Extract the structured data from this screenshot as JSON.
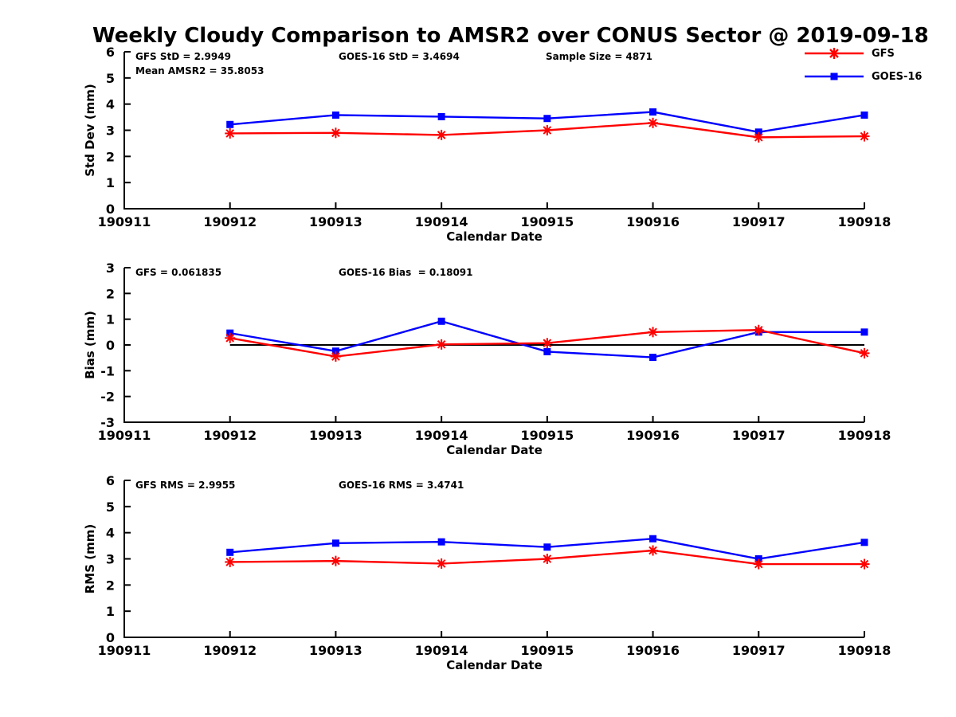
{
  "title": "Weekly Cloudy Comparison to AMSR2 over CONUS Sector @ 2019-09-18",
  "legend": {
    "items": [
      {
        "label": "GFS",
        "color": "#ff0000",
        "marker": "asterisk"
      },
      {
        "label": "GOES-16",
        "color": "#0000ff",
        "marker": "square"
      }
    ]
  },
  "colors": {
    "gfs": "#ff0000",
    "goes16": "#0000ff",
    "axis": "#000000",
    "zero_line": "#000000"
  },
  "chart_data": [
    {
      "type": "line",
      "id": "std_dev",
      "ylabel": "Std Dev (mm)",
      "xlabel": "Calendar Date",
      "ylim": [
        0,
        6
      ],
      "yticks": [
        0,
        1,
        2,
        3,
        4,
        5,
        6
      ],
      "xticks": [
        "190911",
        "190912",
        "190913",
        "190914",
        "190915",
        "190916",
        "190917",
        "190918"
      ],
      "x": [
        "190912",
        "190913",
        "190914",
        "190915",
        "190916",
        "190917",
        "190918"
      ],
      "series": [
        {
          "name": "GFS",
          "color": "#ff0000",
          "marker": "asterisk",
          "values": [
            2.88,
            2.9,
            2.82,
            3.0,
            3.28,
            2.73,
            2.77
          ]
        },
        {
          "name": "GOES-16",
          "color": "#0000ff",
          "marker": "square",
          "values": [
            3.22,
            3.58,
            3.52,
            3.45,
            3.7,
            2.93,
            3.58
          ]
        }
      ],
      "annotations": [
        {
          "text": "GFS StD = 2.9949",
          "dx": 14,
          "row": 0
        },
        {
          "text": "Mean AMSR2 = 35.8053",
          "dx": 14,
          "row": 1
        },
        {
          "text": "GOES-16 StD = 3.4694",
          "dx": 269,
          "row": 0
        },
        {
          "text": "Sample Size = 4871",
          "dx": 529,
          "row": 0
        }
      ],
      "zero_line": false,
      "grid": false,
      "legend_position": "top-right-outside"
    },
    {
      "type": "line",
      "id": "bias",
      "ylabel": "Bias (mm)",
      "xlabel": "Calendar Date",
      "ylim": [
        -3,
        3
      ],
      "yticks": [
        3,
        2,
        1,
        0,
        -1,
        -2,
        -3
      ],
      "xticks": [
        "190911",
        "190912",
        "190913",
        "190914",
        "190915",
        "190916",
        "190917",
        "190918"
      ],
      "x": [
        "190912",
        "190913",
        "190914",
        "190915",
        "190916",
        "190917",
        "190918"
      ],
      "series": [
        {
          "name": "GFS",
          "color": "#ff0000",
          "marker": "asterisk",
          "values": [
            0.27,
            -0.45,
            0.02,
            0.07,
            0.5,
            0.58,
            -0.32
          ]
        },
        {
          "name": "GOES-16",
          "color": "#0000ff",
          "marker": "square",
          "values": [
            0.46,
            -0.24,
            0.92,
            -0.26,
            -0.48,
            0.5,
            0.5
          ]
        }
      ],
      "annotations": [
        {
          "text": "GFS = 0.061835",
          "dx": 14,
          "row": 0
        },
        {
          "text": "GOES-16 Bias  = 0.18091",
          "dx": 269,
          "row": 0
        }
      ],
      "zero_line": true,
      "grid": false
    },
    {
      "type": "line",
      "id": "rms",
      "ylabel": "RMS (mm)",
      "xlabel": "Calendar Date",
      "ylim": [
        0,
        6
      ],
      "yticks": [
        0,
        1,
        2,
        3,
        4,
        5,
        6
      ],
      "xticks": [
        "190911",
        "190912",
        "190913",
        "190914",
        "190915",
        "190916",
        "190917",
        "190918"
      ],
      "x": [
        "190912",
        "190913",
        "190914",
        "190915",
        "190916",
        "190917",
        "190918"
      ],
      "series": [
        {
          "name": "GFS",
          "color": "#ff0000",
          "marker": "asterisk",
          "values": [
            2.88,
            2.92,
            2.82,
            3.0,
            3.32,
            2.8,
            2.8
          ]
        },
        {
          "name": "GOES-16",
          "color": "#0000ff",
          "marker": "square",
          "values": [
            3.25,
            3.6,
            3.65,
            3.45,
            3.77,
            3.0,
            3.63
          ]
        }
      ],
      "annotations": [
        {
          "text": "GFS RMS = 2.9955",
          "dx": 14,
          "row": 0
        },
        {
          "text": "GOES-16 RMS = 3.4741",
          "dx": 269,
          "row": 0
        }
      ],
      "zero_line": false,
      "grid": false
    }
  ]
}
